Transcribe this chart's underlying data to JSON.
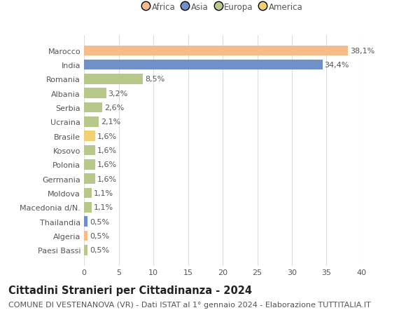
{
  "countries": [
    "Marocco",
    "India",
    "Romania",
    "Albania",
    "Serbia",
    "Ucraina",
    "Brasile",
    "Kosovo",
    "Polonia",
    "Germania",
    "Moldova",
    "Macedonia d/N.",
    "Thailandia",
    "Algeria",
    "Paesi Bassi"
  ],
  "values": [
    38.1,
    34.4,
    8.5,
    3.2,
    2.6,
    2.1,
    1.6,
    1.6,
    1.6,
    1.6,
    1.1,
    1.1,
    0.5,
    0.5,
    0.5
  ],
  "labels": [
    "38,1%",
    "34,4%",
    "8,5%",
    "3,2%",
    "2,6%",
    "2,1%",
    "1,6%",
    "1,6%",
    "1,6%",
    "1,6%",
    "1,1%",
    "1,1%",
    "0,5%",
    "0,5%",
    "0,5%"
  ],
  "colors": [
    "#f5bc8a",
    "#7090c8",
    "#b8c88a",
    "#b8c88a",
    "#b8c88a",
    "#b8c88a",
    "#f0d070",
    "#b8c88a",
    "#b8c88a",
    "#b8c88a",
    "#b8c88a",
    "#b8c88a",
    "#7090c8",
    "#f5bc8a",
    "#b8c88a"
  ],
  "legend_labels": [
    "Africa",
    "Asia",
    "Europa",
    "America"
  ],
  "legend_colors": [
    "#f5bc8a",
    "#7090c8",
    "#b8c88a",
    "#f0d070"
  ],
  "title": "Cittadini Stranieri per Cittadinanza - 2024",
  "subtitle": "COMUNE DI VESTENANOVA (VR) - Dati ISTAT al 1° gennaio 2024 - Elaborazione TUTTITALIA.IT",
  "xlim": [
    0,
    40
  ],
  "xticks": [
    0,
    5,
    10,
    15,
    20,
    25,
    30,
    35,
    40
  ],
  "background_color": "#ffffff",
  "grid_color": "#dddddd",
  "bar_height": 0.72,
  "title_fontsize": 10.5,
  "subtitle_fontsize": 8,
  "label_fontsize": 8,
  "tick_fontsize": 8,
  "legend_fontsize": 8.5,
  "text_color": "#555555"
}
